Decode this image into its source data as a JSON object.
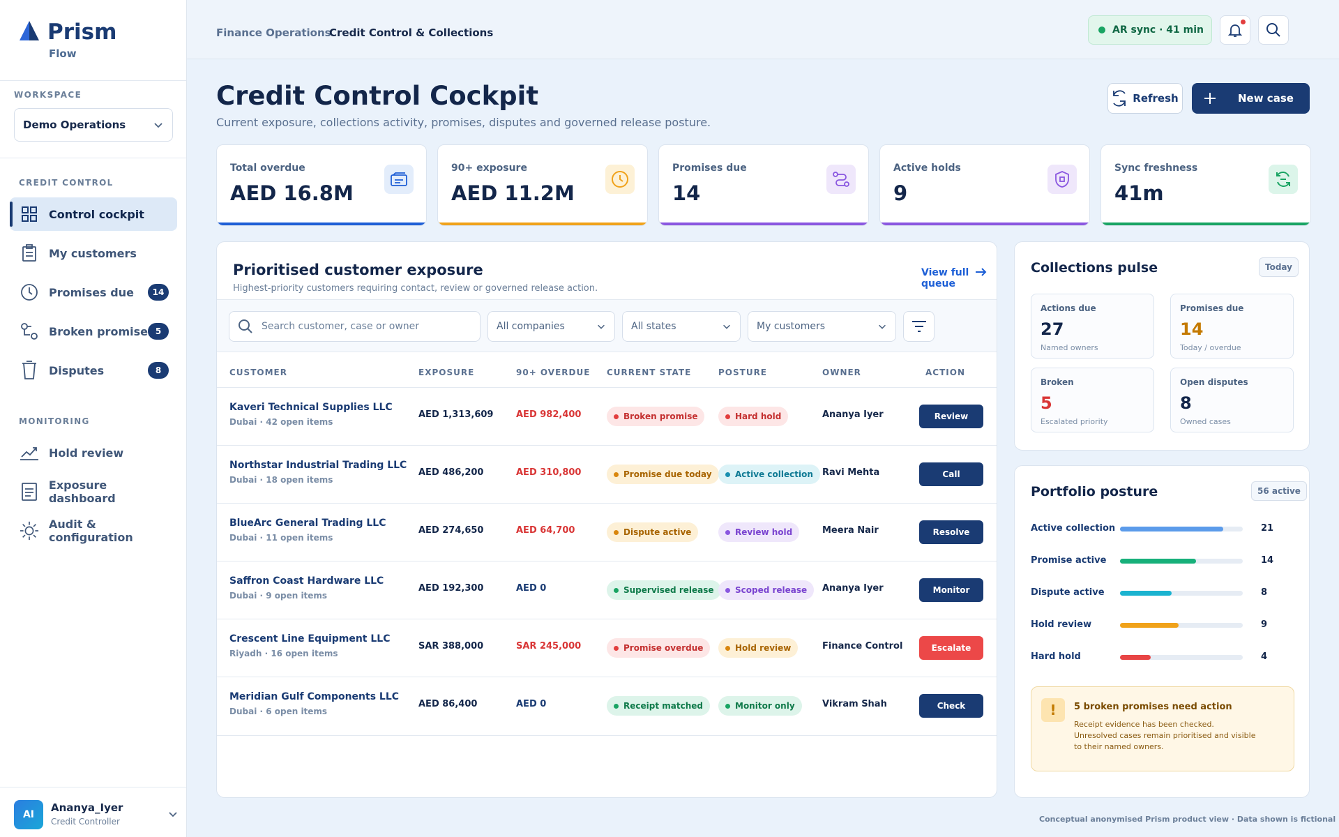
{
  "brand": {
    "name": "Prism",
    "sub": "Flow"
  },
  "workspace": {
    "label": "WORKSPACE",
    "value": "Demo Operations"
  },
  "nav": {
    "section1": "CREDIT CONTROL",
    "section2": "MONITORING",
    "items": [
      {
        "label": "Control cockpit",
        "icon": "grid-icon"
      },
      {
        "label": "My customers",
        "icon": "clipboard-icon"
      },
      {
        "label": "Promises due",
        "icon": "clock-icon",
        "count": "14"
      },
      {
        "label": "Broken promises",
        "icon": "broken-link-icon",
        "count": "5"
      },
      {
        "label": "Disputes",
        "icon": "cup-icon",
        "count": "8"
      },
      {
        "label": "Hold review",
        "icon": "trend-icon"
      },
      {
        "label": "Exposure dashboard",
        "icon": "document-icon"
      },
      {
        "label": "Audit & configuration",
        "icon": "sun-gear-icon"
      }
    ]
  },
  "user": {
    "initials": "AI",
    "name": "Ananya_Iyer",
    "role": "Credit Controller"
  },
  "topbar": {
    "crumb_parent": "Finance Operations",
    "crumb_current": "Credit Control & Collections",
    "sync": "AR sync · 41 min"
  },
  "header": {
    "title": "Credit Control Cockpit",
    "subtitle": "Current exposure, collections activity, promises, disputes and governed release posture.",
    "refresh": "Refresh",
    "new_case": "New case"
  },
  "kpis": [
    {
      "label": "Total overdue",
      "value": "AED 16.8M",
      "color": "#1f5fd6"
    },
    {
      "label": "90+ exposure",
      "value": "AED 11.2M",
      "color": "#f0a21a"
    },
    {
      "label": "Promises due",
      "value": "14",
      "color": "#8a57e0"
    },
    {
      "label": "Active holds",
      "value": "9",
      "color": "#8a57e0"
    },
    {
      "label": "Sync freshness",
      "value": "41m",
      "color": "#19a463"
    }
  ],
  "table": {
    "title": "Prioritised customer exposure",
    "subtitle": "Highest-priority customers requiring contact, review or governed release action.",
    "view_full": "View full queue",
    "search_placeholder": "Search customer, case or owner",
    "filters": [
      "All companies",
      "All states",
      "My customers"
    ],
    "headers": [
      "CUSTOMER",
      "EXPOSURE",
      "90+ OVERDUE",
      "CURRENT STATE",
      "POSTURE",
      "OWNER",
      "ACTION"
    ],
    "rows": [
      {
        "name": "Kaveri Technical Supplies LLC",
        "meta": "Dubai · 42 open items",
        "exposure": "AED 1,313,609",
        "overdue": "AED 982,400",
        "state": "Broken promise",
        "posture": "Hard hold",
        "owner": "Ananya Iyer",
        "action": "Review"
      },
      {
        "name": "Northstar Industrial Trading LLC",
        "meta": "Dubai · 18 open items",
        "exposure": "AED 486,200",
        "overdue": "AED 310,800",
        "state": "Promise due today",
        "posture": "Active collection",
        "owner": "Ravi Mehta",
        "action": "Call"
      },
      {
        "name": "BlueArc General Trading LLC",
        "meta": "Dubai · 11 open items",
        "exposure": "AED 274,650",
        "overdue": "AED 64,700",
        "state": "Dispute active",
        "posture": "Review hold",
        "owner": "Meera Nair",
        "action": "Resolve"
      },
      {
        "name": "Saffron Coast Hardware LLC",
        "meta": "Dubai · 9 open items",
        "exposure": "AED 192,300",
        "overdue": "AED 0",
        "state": "Supervised release",
        "posture": "Scoped release",
        "owner": "Ananya Iyer",
        "action": "Monitor"
      },
      {
        "name": "Crescent Line Equipment LLC",
        "meta": "Riyadh · 16 open items",
        "exposure": "SAR 388,000",
        "overdue": "SAR 245,000",
        "state": "Promise overdue",
        "posture": "Hold review",
        "owner": "Finance Control",
        "action": "Escalate"
      },
      {
        "name": "Meridian Gulf Components LLC",
        "meta": "Dubai · 6 open items",
        "exposure": "AED 86,400",
        "overdue": "AED 0",
        "state": "Receipt matched",
        "posture": "Monitor only",
        "owner": "Vikram Shah",
        "action": "Check"
      }
    ]
  },
  "pulse": {
    "title": "Collections pulse",
    "chip": "Today",
    "cards": [
      {
        "label": "Actions due",
        "value": "27",
        "sub": "Named owners"
      },
      {
        "label": "Promises due",
        "value": "14",
        "sub": "Today / overdue"
      },
      {
        "label": "Broken",
        "value": "5",
        "sub": "Escalated priority"
      },
      {
        "label": "Open disputes",
        "value": "8",
        "sub": "Owned cases"
      }
    ]
  },
  "posture": {
    "title": "Portfolio posture",
    "chip": "56 active",
    "rows": [
      {
        "label": "Active collection",
        "value": "21",
        "fraction": 0.84,
        "color": "#5b9bea"
      },
      {
        "label": "Promise active",
        "value": "14",
        "fraction": 0.62,
        "color": "#17b07a"
      },
      {
        "label": "Dispute active",
        "value": "8",
        "fraction": 0.42,
        "color": "#1bb3d0"
      },
      {
        "label": "Hold review",
        "value": "9",
        "fraction": 0.48,
        "color": "#f0a21a"
      },
      {
        "label": "Hard hold",
        "value": "4",
        "fraction": 0.25,
        "color": "#e84545"
      }
    ],
    "alert_title": "5 broken promises need action",
    "alert_text": "Receipt evidence has been checked. Unresolved cases remain prioritised and visible to their named owners."
  },
  "footer": "Conceptual anonymised Prism product view · Data shown is fictional"
}
